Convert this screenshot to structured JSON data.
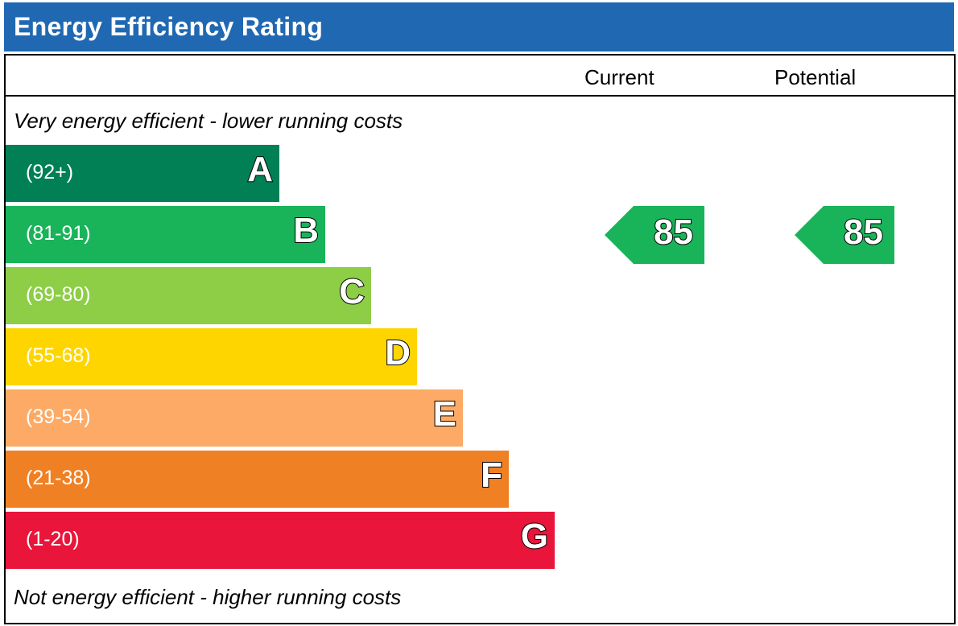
{
  "title": "Energy Efficiency Rating",
  "columns": {
    "current": "Current",
    "potential": "Potential"
  },
  "captions": {
    "top": "Very energy efficient - lower running costs",
    "bottom": "Not energy efficient - higher running costs"
  },
  "chart_data": {
    "type": "bar",
    "title": "Energy Efficiency Rating",
    "bands": [
      {
        "letter": "A",
        "range": "(92+)",
        "min": 92,
        "max": 100,
        "color": "#008054"
      },
      {
        "letter": "B",
        "range": "(81-91)",
        "min": 81,
        "max": 91,
        "color": "#19b459"
      },
      {
        "letter": "C",
        "range": "(69-80)",
        "min": 69,
        "max": 80,
        "color": "#8dce46"
      },
      {
        "letter": "D",
        "range": "(55-68)",
        "min": 55,
        "max": 68,
        "color": "#ffd500"
      },
      {
        "letter": "E",
        "range": "(39-54)",
        "min": 39,
        "max": 54,
        "color": "#fcaa65"
      },
      {
        "letter": "F",
        "range": "(21-38)",
        "min": 21,
        "max": 38,
        "color": "#ef8023"
      },
      {
        "letter": "G",
        "range": "(1-20)",
        "min": 1,
        "max": 20,
        "color": "#e9153b"
      }
    ],
    "current": {
      "value": "85",
      "band": "B",
      "color": "#19b459"
    },
    "potential": {
      "value": "85",
      "band": "B",
      "color": "#19b459"
    }
  }
}
